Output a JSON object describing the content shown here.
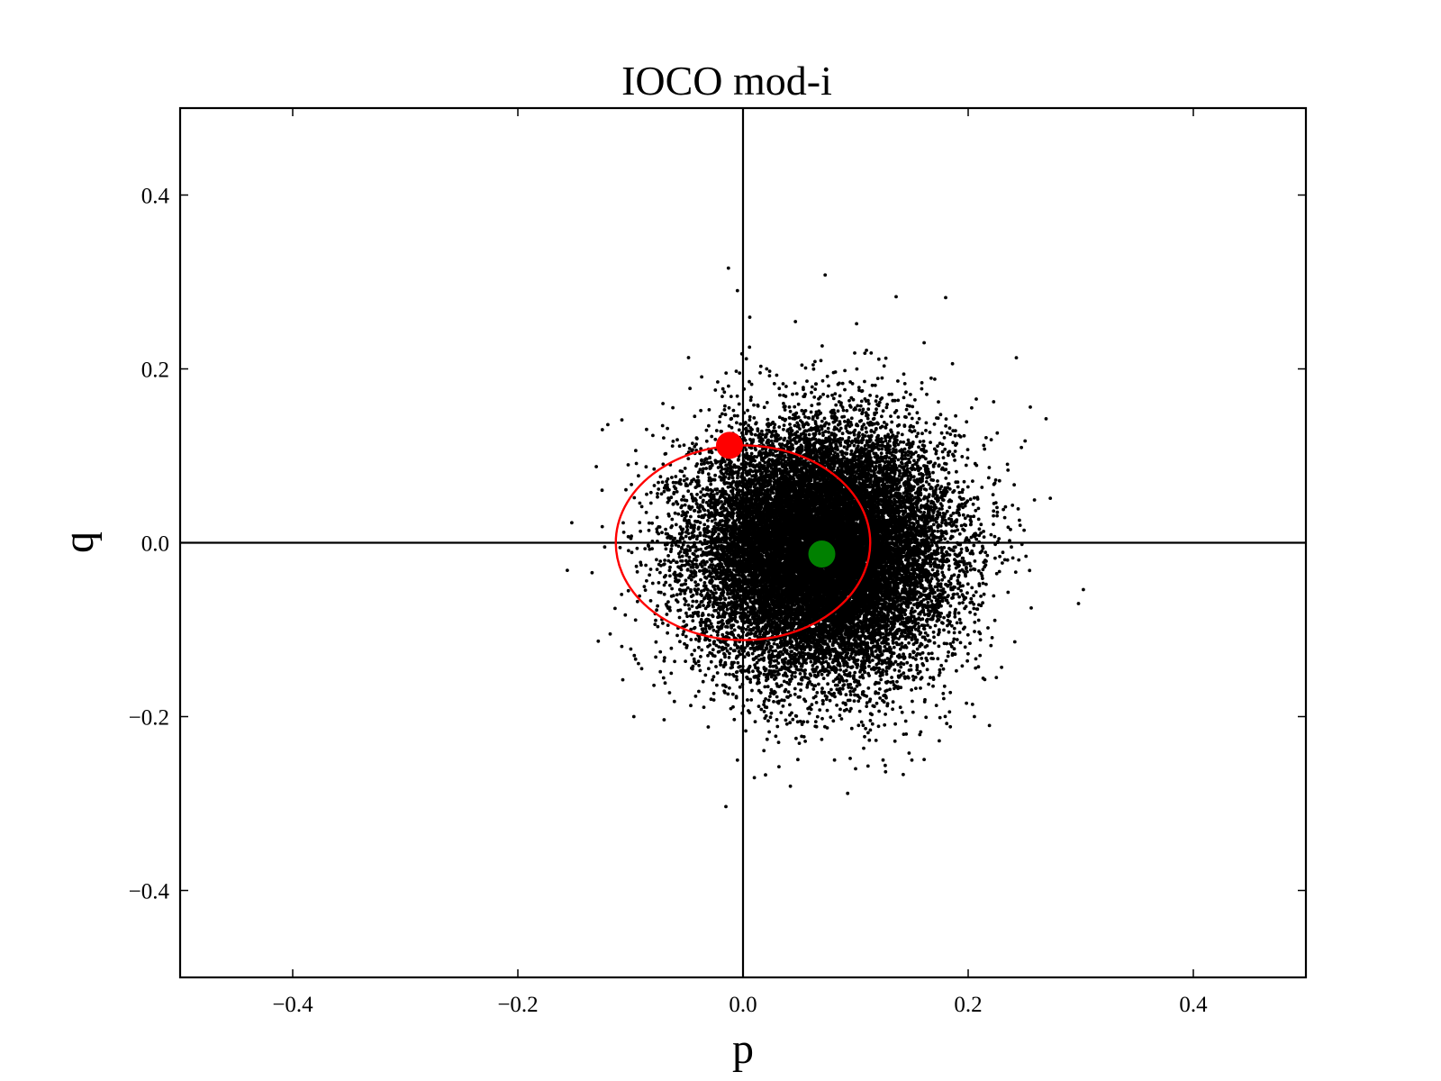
{
  "chart_data": {
    "type": "scatter",
    "title": "IOCO mod-i",
    "xlabel": "p",
    "ylabel": "q",
    "xlim": [
      -0.5,
      0.5
    ],
    "ylim": [
      -0.5,
      0.5
    ],
    "x_ticks": [
      -0.4,
      -0.2,
      0.0,
      0.2,
      0.4
    ],
    "x_tick_labels": [
      "−0.4",
      "−0.2",
      "0.0",
      "0.2",
      "0.4"
    ],
    "y_ticks": [
      0.4,
      0.2,
      0.0,
      -0.2,
      -0.4
    ],
    "y_tick_labels": [
      "0.4",
      "0.2",
      "0.0",
      "−0.2",
      "−0.4"
    ],
    "grid": false,
    "zero_lines": true,
    "series": [
      {
        "kind": "point-cloud",
        "color": "#000000",
        "center": [
          0.07,
          -0.01
        ],
        "std": [
          0.055,
          0.07
        ],
        "approx_count": 20000,
        "outliers": [
          [
            -0.013,
            0.316
          ],
          [
            -0.005,
            0.29
          ],
          [
            0.073,
            0.308
          ],
          [
            0.18,
            0.282
          ],
          [
            0.136,
            0.283
          ],
          [
            0.298,
            -0.07
          ],
          [
            0.02,
            -0.267
          ],
          [
            0.1,
            -0.26
          ],
          [
            -0.005,
            -0.25
          ],
          [
            -0.118,
            -0.105
          ],
          [
            -0.097,
            -0.2
          ],
          [
            0.225,
            -0.155
          ],
          [
            0.256,
            -0.075
          ],
          [
            -0.125,
            0.13
          ],
          [
            0.15,
            -0.25
          ]
        ]
      },
      {
        "kind": "ellipse",
        "color": "#ff0000",
        "center": [
          0.0,
          0.0
        ],
        "rx": 0.113,
        "ry": 0.112
      },
      {
        "kind": "marker",
        "color": "#ff0000",
        "point": [
          -0.012,
          0.112
        ]
      },
      {
        "kind": "marker",
        "color": "#008000",
        "point": [
          0.07,
          -0.013
        ]
      }
    ]
  }
}
